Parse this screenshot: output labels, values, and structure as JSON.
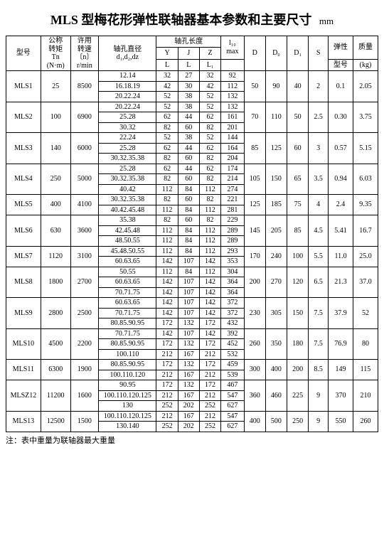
{
  "title_main": "MLS 型梅花形弹性联轴器基本参数和主要尺寸",
  "title_unit": "mm",
  "footer_note": "注：表中重量为联轴器最大重量",
  "header": {
    "model": "型号",
    "Tn_l1": "公称",
    "Tn_l2": "转矩",
    "Tn_l3": "Tn",
    "Tn_l4": "(N·m)",
    "n_l1": "许用",
    "n_l2": "转速",
    "n_l3": "〔n〕",
    "n_l4": "r/min",
    "shaft_l1": "轴孔直径",
    "shaft_l2": "d₁,d₂,dz",
    "hole_len": "轴孔长度",
    "Y": "Y",
    "J": "J",
    "Z": "Z",
    "L": "L",
    "L1": "L₁",
    "l10_l1": "l₁₀",
    "l10_l2": "max",
    "D": "D",
    "Do": "D₀",
    "D1": "D₁",
    "S": "S",
    "elastic_l1": "弹性",
    "elastic_l2": "型号",
    "mass_l1": "质量",
    "mass_l2": "(kg)"
  },
  "groups": [
    {
      "model": "MLS1",
      "Tn": "25",
      "n": "8500",
      "D": "50",
      "Do": "90",
      "D1": "40",
      "S": "2",
      "elastic": "0.1",
      "mass": "2.05",
      "rows": [
        {
          "d": "12.14",
          "Y": "32",
          "J": "27",
          "Z": "32",
          "l10": "92"
        },
        {
          "d": "16.18.19",
          "Y": "42",
          "J": "30",
          "Z": "42",
          "l10": "112"
        },
        {
          "d": "20.22.24",
          "Y": "52",
          "J": "38",
          "Z": "52",
          "l10": "132"
        }
      ]
    },
    {
      "model": "MLS2",
      "Tn": "100",
      "n": "6900",
      "D": "70",
      "Do": "110",
      "D1": "50",
      "S": "2.5",
      "elastic": "0.30",
      "mass": "3.75",
      "rows": [
        {
          "d": "20.22.24",
          "Y": "52",
          "J": "38",
          "Z": "52",
          "l10": "132"
        },
        {
          "d": "25.28",
          "Y": "62",
          "J": "44",
          "Z": "62",
          "l10": "161"
        },
        {
          "d": "30.32",
          "Y": "82",
          "J": "60",
          "Z": "82",
          "l10": "201"
        }
      ]
    },
    {
      "model": "MLS3",
      "Tn": "140",
      "n": "6000",
      "D": "85",
      "Do": "125",
      "D1": "60",
      "S": "3",
      "elastic": "0.57",
      "mass": "5.15",
      "rows": [
        {
          "d": "22.24",
          "Y": "52",
          "J": "38",
          "Z": "52",
          "l10": "144"
        },
        {
          "d": "25.28",
          "Y": "62",
          "J": "44",
          "Z": "62",
          "l10": "164"
        },
        {
          "d": "30.32.35.38",
          "Y": "82",
          "J": "60",
          "Z": "82",
          "l10": "204"
        }
      ]
    },
    {
      "model": "MLS4",
      "Tn": "250",
      "n": "5000",
      "D": "105",
      "Do": "150",
      "D1": "65",
      "S": "3.5",
      "elastic": "0.94",
      "mass": "6.03",
      "rows": [
        {
          "d": "25.28",
          "Y": "62",
          "J": "44",
          "Z": "62",
          "l10": "174"
        },
        {
          "d": "30.32.35.38",
          "Y": "82",
          "J": "60",
          "Z": "82",
          "l10": "214"
        },
        {
          "d": "40.42",
          "Y": "112",
          "J": "84",
          "Z": "112",
          "l10": "274"
        }
      ]
    },
    {
      "model": "MLS5",
      "Tn": "400",
      "n": "4100",
      "D": "125",
      "Do": "185",
      "D1": "75",
      "S": "4",
      "elastic": "2.4",
      "mass": "9.35",
      "rows": [
        {
          "d": "30.32.35.38",
          "Y": "82",
          "J": "60",
          "Z": "82",
          "l10": "221"
        },
        {
          "d": "40.42.45.48",
          "Y": "112",
          "J": "84",
          "Z": "112",
          "l10": "281"
        }
      ]
    },
    {
      "model": "MLS6",
      "Tn": "630",
      "n": "3600",
      "D": "145",
      "Do": "205",
      "D1": "85",
      "S": "4.5",
      "elastic": "5.41",
      "mass": "16.7",
      "rows": [
        {
          "d": "35.38",
          "Y": "82",
          "J": "60",
          "Z": "82",
          "l10": "229"
        },
        {
          "d": "42.45.48",
          "Y": "112",
          "J": "84",
          "Z": "112",
          "l10": "289"
        },
        {
          "d": "48.50.55",
          "Y": "112",
          "J": "84",
          "Z": "112",
          "l10": "289"
        }
      ]
    },
    {
      "model": "MLS7",
      "Tn": "1120",
      "n": "3100",
      "D": "170",
      "Do": "240",
      "D1": "100",
      "S": "5.5",
      "elastic": "11.0",
      "mass": "25.0",
      "rows": [
        {
          "d": "45.48.50.55",
          "Y": "112",
          "J": "84",
          "Z": "112",
          "l10": "293"
        },
        {
          "d": "60.63.65",
          "Y": "142",
          "J": "107",
          "Z": "142",
          "l10": "353"
        }
      ]
    },
    {
      "model": "MLS8",
      "Tn": "1800",
      "n": "2700",
      "D": "200",
      "Do": "270",
      "D1": "120",
      "S": "6.5",
      "elastic": "21.3",
      "mass": "37.0",
      "rows": [
        {
          "d": "50.55",
          "Y": "112",
          "J": "84",
          "Z": "112",
          "l10": "304"
        },
        {
          "d": "60.63.65",
          "Y": "142",
          "J": "107",
          "Z": "142",
          "l10": "364"
        },
        {
          "d": "70.71.75",
          "Y": "142",
          "J": "107",
          "Z": "142",
          "l10": "364"
        }
      ]
    },
    {
      "model": "MLS9",
      "Tn": "2800",
      "n": "2500",
      "D": "230",
      "Do": "305",
      "D1": "150",
      "S": "7.5",
      "elastic": "37.9",
      "mass": "52",
      "rows": [
        {
          "d": "60.63.65",
          "Y": "142",
          "J": "107",
          "Z": "142",
          "l10": "372"
        },
        {
          "d": "70.71.75",
          "Y": "142",
          "J": "107",
          "Z": "142",
          "l10": "372"
        },
        {
          "d": "80.85.90.95",
          "Y": "172",
          "J": "132",
          "Z": "172",
          "l10": "432"
        }
      ]
    },
    {
      "model": "MLS10",
      "Tn": "4500",
      "n": "2200",
      "D": "260",
      "Do": "350",
      "D1": "180",
      "S": "7.5",
      "elastic": "76.9",
      "mass": "80",
      "rows": [
        {
          "d": "70.71.75",
          "Y": "142",
          "J": "107",
          "Z": "142",
          "l10": "392"
        },
        {
          "d": "80.85.90.95",
          "Y": "172",
          "J": "132",
          "Z": "172",
          "l10": "452"
        },
        {
          "d": "100.110",
          "Y": "212",
          "J": "167",
          "Z": "212",
          "l10": "532"
        }
      ]
    },
    {
      "model": "MLS11",
      "Tn": "6300",
      "n": "1900",
      "D": "300",
      "Do": "400",
      "D1": "200",
      "S": "8.5",
      "elastic": "149",
      "mass": "115",
      "rows": [
        {
          "d": "80.85.90.95",
          "Y": "172",
          "J": "132",
          "Z": "172",
          "l10": "459"
        },
        {
          "d": "100.110.120",
          "Y": "212",
          "J": "167",
          "Z": "212",
          "l10": "539"
        }
      ]
    },
    {
      "model": "MLSZ12",
      "Tn": "11200",
      "n": "1600",
      "D": "360",
      "Do": "460",
      "D1": "225",
      "S": "9",
      "elastic": "370",
      "mass": "210",
      "rows": [
        {
          "d": "90.95",
          "Y": "172",
          "J": "132",
          "Z": "172",
          "l10": "467"
        },
        {
          "d": "100.110.120.125",
          "Y": "212",
          "J": "167",
          "Z": "212",
          "l10": "547"
        },
        {
          "d": "130",
          "Y": "252",
          "J": "202",
          "Z": "252",
          "l10": "627"
        }
      ]
    },
    {
      "model": "MLS13",
      "Tn": "12500",
      "n": "1500",
      "D": "400",
      "Do": "500",
      "D1": "250",
      "S": "9",
      "elastic": "550",
      "mass": "260",
      "rows": [
        {
          "d": "100.110.120.125",
          "Y": "212",
          "J": "167",
          "Z": "212",
          "l10": "547"
        },
        {
          "d": "130.140",
          "Y": "252",
          "J": "202",
          "Z": "252",
          "l10": "627"
        }
      ]
    }
  ]
}
